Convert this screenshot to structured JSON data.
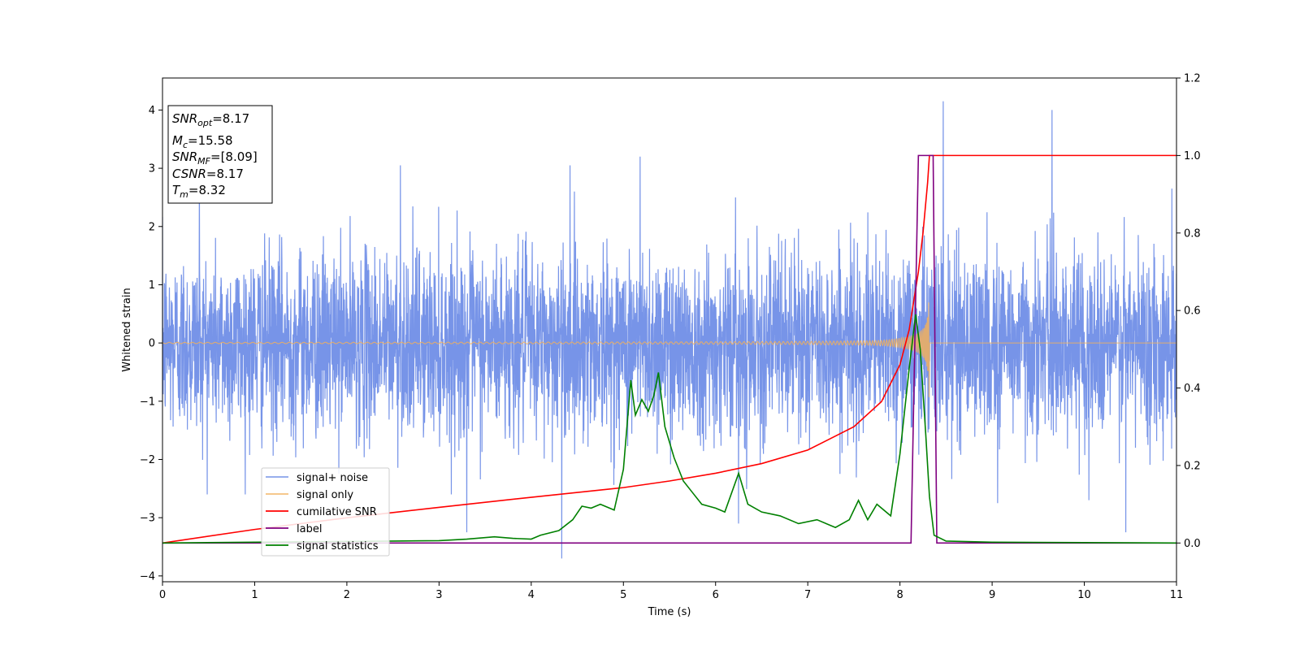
{
  "chart_data": {
    "type": "line",
    "xlabel": "Time (s)",
    "ylabel": "Whitened strain",
    "xlim": [
      0,
      11
    ],
    "ylim": [
      -4.1,
      4.55
    ],
    "y2lim": [
      -0.1,
      1.2
    ],
    "xticks": [
      0,
      1,
      2,
      3,
      4,
      5,
      6,
      7,
      8,
      9,
      10,
      11
    ],
    "yticks": [
      -4,
      -3,
      -2,
      -1,
      0,
      1,
      2,
      3,
      4
    ],
    "y2ticks": [
      0.0,
      0.2,
      0.4,
      0.6,
      0.8,
      1.0,
      1.2
    ],
    "legend_position": "lower-left",
    "annotation": {
      "lines": [
        {
          "base": "SNR",
          "sub": "opt",
          "value": "=8.17"
        },
        {
          "base": "M",
          "sub": "c",
          "value": "=15.58"
        },
        {
          "base": "SNR",
          "sub": "MF",
          "value": "=[8.09]"
        },
        {
          "base": "CSNR",
          "sub": "",
          "value": "=8.17"
        },
        {
          "base": "T",
          "sub": "m",
          "value": "=8.32"
        }
      ]
    },
    "series": [
      {
        "name": "signal+ noise",
        "color": "#6b8be6",
        "axis": "left",
        "kind": "noise",
        "spikes": [
          [
            0.4,
            2.85
          ],
          [
            2.58,
            3.05
          ],
          [
            3.3,
            -3.25
          ],
          [
            4.33,
            -3.7
          ],
          [
            4.42,
            3.05
          ],
          [
            5.18,
            3.2
          ],
          [
            6.25,
            -3.1
          ],
          [
            8.47,
            4.15
          ],
          [
            9.06,
            -2.75
          ],
          [
            9.65,
            4.0
          ],
          [
            10.05,
            -2.7
          ],
          [
            10.45,
            -3.25
          ],
          [
            10.95,
            2.65
          ]
        ]
      },
      {
        "name": "signal only",
        "color": "#f2b05c",
        "axis": "left",
        "kind": "chirp",
        "merger": 8.32
      },
      {
        "name": "cumilative SNR",
        "color": "#ff0000",
        "axis": "right",
        "x": [
          0,
          1,
          2,
          3,
          4,
          5,
          5.5,
          6,
          6.5,
          7,
          7.5,
          7.8,
          8.0,
          8.1,
          8.2,
          8.25,
          8.3,
          8.32,
          11
        ],
        "values": [
          0.0,
          0.035,
          0.065,
          0.092,
          0.118,
          0.143,
          0.16,
          0.18,
          0.205,
          0.24,
          0.3,
          0.365,
          0.46,
          0.55,
          0.7,
          0.8,
          0.93,
          1.0,
          1.0
        ]
      },
      {
        "name": "label",
        "color": "#800080",
        "axis": "right",
        "x": [
          0,
          8.12,
          8.2,
          8.36,
          8.4,
          11
        ],
        "values": [
          0.0,
          0.0,
          1.0,
          1.0,
          0.0,
          0.0
        ]
      },
      {
        "name": "signal statistics",
        "color": "#008000",
        "axis": "right",
        "x": [
          0,
          1,
          2,
          2.5,
          3,
          3.3,
          3.6,
          3.8,
          4.0,
          4.1,
          4.3,
          4.45,
          4.55,
          4.65,
          4.75,
          4.9,
          5.0,
          5.08,
          5.13,
          5.2,
          5.27,
          5.33,
          5.38,
          5.45,
          5.55,
          5.65,
          5.75,
          5.85,
          6.0,
          6.1,
          6.25,
          6.35,
          6.5,
          6.7,
          6.9,
          7.1,
          7.3,
          7.45,
          7.55,
          7.65,
          7.75,
          7.9,
          8.0,
          8.1,
          8.17,
          8.22,
          8.28,
          8.32,
          8.37,
          8.5,
          9,
          11
        ],
        "values": [
          0.0,
          0.002,
          0.004,
          0.005,
          0.006,
          0.01,
          0.016,
          0.012,
          0.01,
          0.02,
          0.032,
          0.06,
          0.095,
          0.09,
          0.1,
          0.085,
          0.19,
          0.42,
          0.33,
          0.37,
          0.34,
          0.38,
          0.44,
          0.3,
          0.22,
          0.16,
          0.13,
          0.1,
          0.09,
          0.08,
          0.18,
          0.1,
          0.08,
          0.07,
          0.05,
          0.06,
          0.04,
          0.06,
          0.11,
          0.06,
          0.1,
          0.07,
          0.23,
          0.45,
          0.59,
          0.5,
          0.28,
          0.12,
          0.02,
          0.005,
          0.002,
          0.0
        ]
      }
    ]
  }
}
